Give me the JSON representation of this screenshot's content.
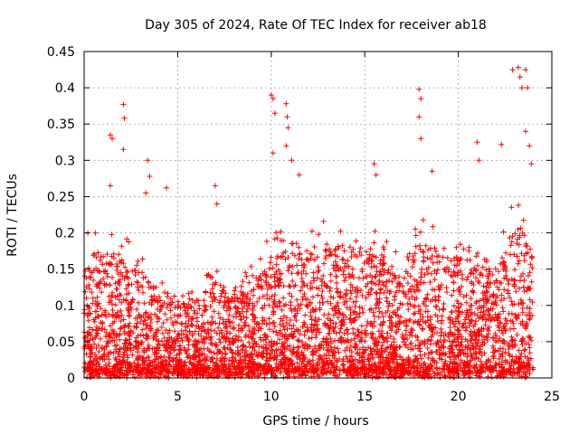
{
  "chart_data": {
    "type": "scatter",
    "title": "Day 305 of 2024, Rate Of TEC Index for receiver ab18",
    "xlabel": "GPS time / hours",
    "ylabel": "ROTI / TECUs",
    "xlim": [
      0,
      25
    ],
    "ylim": [
      0,
      0.45
    ],
    "x_ticks": [
      "0",
      "5",
      "10",
      "15",
      "20",
      "25"
    ],
    "y_ticks": [
      "0",
      "0.05",
      "0.1",
      "0.15",
      "0.2",
      "0.25",
      "0.3",
      "0.35",
      "0.4",
      "0.45"
    ],
    "grid": true,
    "marker": "+",
    "marker_color": "#ff0000",
    "density_profile_hours": [
      0,
      1,
      2,
      3,
      4,
      5,
      6,
      7,
      8,
      9,
      10,
      11,
      12,
      13,
      14,
      15,
      16,
      17,
      18,
      19,
      20,
      21,
      22,
      23,
      24
    ],
    "typical_upper_roti": [
      0.12,
      0.15,
      0.14,
      0.13,
      0.1,
      0.08,
      0.09,
      0.11,
      0.09,
      0.12,
      0.14,
      0.16,
      0.15,
      0.16,
      0.15,
      0.15,
      0.14,
      0.12,
      0.16,
      0.15,
      0.14,
      0.13,
      0.12,
      0.18,
      0.15
    ],
    "peaks": [
      {
        "x": 0.2,
        "y": 0.2
      },
      {
        "x": 0.6,
        "y": 0.2
      },
      {
        "x": 1.4,
        "y": 0.335
      },
      {
        "x": 1.5,
        "y": 0.33
      },
      {
        "x": 1.4,
        "y": 0.265
      },
      {
        "x": 2.1,
        "y": 0.377
      },
      {
        "x": 2.15,
        "y": 0.358
      },
      {
        "x": 2.1,
        "y": 0.315
      },
      {
        "x": 3.4,
        "y": 0.3
      },
      {
        "x": 3.5,
        "y": 0.278
      },
      {
        "x": 3.3,
        "y": 0.255
      },
      {
        "x": 4.4,
        "y": 0.262
      },
      {
        "x": 7.0,
        "y": 0.265
      },
      {
        "x": 7.1,
        "y": 0.24
      },
      {
        "x": 10.0,
        "y": 0.39
      },
      {
        "x": 10.1,
        "y": 0.385
      },
      {
        "x": 10.2,
        "y": 0.365
      },
      {
        "x": 10.1,
        "y": 0.31
      },
      {
        "x": 10.8,
        "y": 0.378
      },
      {
        "x": 10.85,
        "y": 0.36
      },
      {
        "x": 10.9,
        "y": 0.345
      },
      {
        "x": 10.8,
        "y": 0.32
      },
      {
        "x": 11.1,
        "y": 0.3
      },
      {
        "x": 11.5,
        "y": 0.28
      },
      {
        "x": 15.5,
        "y": 0.295
      },
      {
        "x": 15.6,
        "y": 0.28
      },
      {
        "x": 17.9,
        "y": 0.398
      },
      {
        "x": 18.0,
        "y": 0.385
      },
      {
        "x": 17.9,
        "y": 0.36
      },
      {
        "x": 18.0,
        "y": 0.33
      },
      {
        "x": 18.6,
        "y": 0.285
      },
      {
        "x": 21.0,
        "y": 0.325
      },
      {
        "x": 21.1,
        "y": 0.3
      },
      {
        "x": 22.3,
        "y": 0.322
      },
      {
        "x": 22.9,
        "y": 0.425
      },
      {
        "x": 23.2,
        "y": 0.428
      },
      {
        "x": 23.3,
        "y": 0.415
      },
      {
        "x": 23.4,
        "y": 0.4
      },
      {
        "x": 23.6,
        "y": 0.425
      },
      {
        "x": 23.7,
        "y": 0.4
      },
      {
        "x": 23.6,
        "y": 0.34
      },
      {
        "x": 23.8,
        "y": 0.32
      },
      {
        "x": 23.9,
        "y": 0.295
      }
    ]
  }
}
